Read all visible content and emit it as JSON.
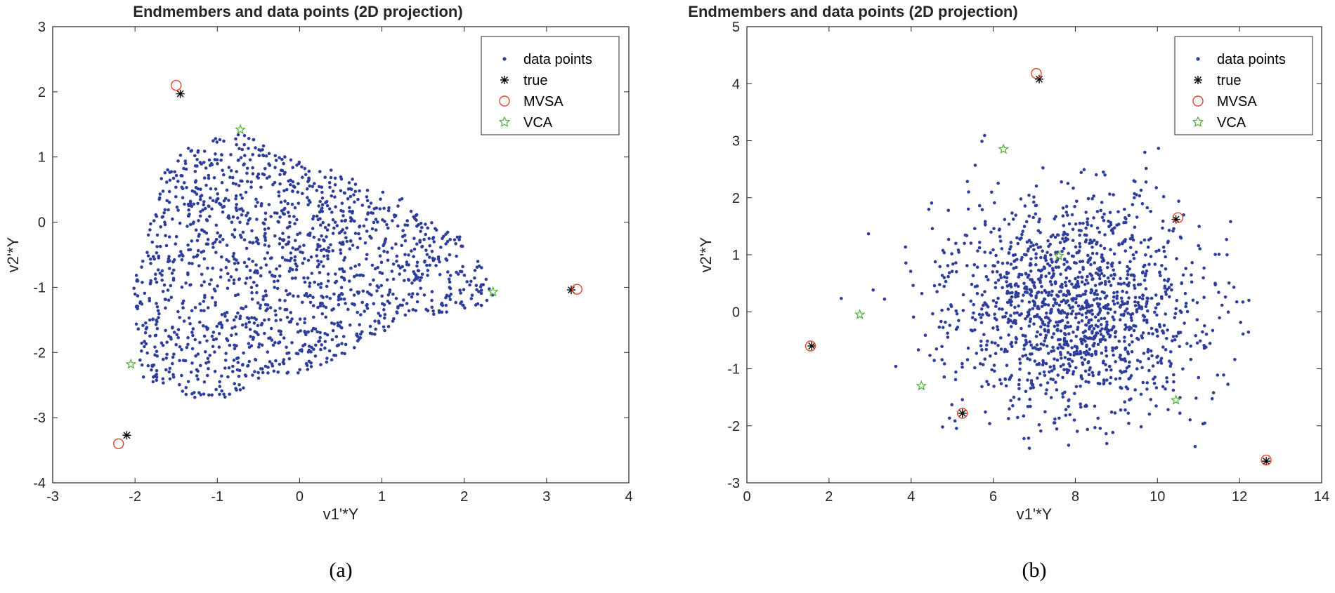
{
  "chart_data": [
    {
      "type": "scatter",
      "title": "Endmembers and data points (2D projection)",
      "xlabel": "v1'*Y",
      "ylabel": "v2'*Y",
      "xlim": [
        -3,
        4
      ],
      "ylim": [
        -4,
        3
      ],
      "xticks": [
        "-3",
        "-2",
        "-1",
        "0",
        "1",
        "2",
        "3",
        "4"
      ],
      "yticks": [
        "-4",
        "-3",
        "-2",
        "-1",
        "0",
        "1",
        "2",
        "3"
      ],
      "caption": "(a)",
      "legend_position": "top-right",
      "legend": [
        "data points",
        "true",
        "MVSA",
        "VCA"
      ],
      "data_points": {
        "count": 1500,
        "cloud_polygon": [
          [
            -1.95,
            -2.25
          ],
          [
            -2.02,
            -1.0
          ],
          [
            -1.72,
            0.55
          ],
          [
            -1.55,
            1.05
          ],
          [
            -1.0,
            1.32
          ],
          [
            -0.72,
            1.4
          ],
          [
            -0.2,
            1.05
          ],
          [
            0.4,
            0.8
          ],
          [
            1.2,
            0.4
          ],
          [
            1.9,
            -0.15
          ],
          [
            2.32,
            -0.85
          ],
          [
            2.38,
            -1.1
          ],
          [
            2.2,
            -1.3
          ],
          [
            1.2,
            -1.55
          ],
          [
            0.3,
            -2.2
          ],
          [
            -0.6,
            -2.55
          ],
          [
            -1.05,
            -2.75
          ],
          [
            -1.55,
            -2.62
          ],
          [
            -1.95,
            -2.35
          ]
        ]
      },
      "series": [
        {
          "name": "true",
          "x": [
            -1.45,
            -2.1,
            3.3
          ],
          "y": [
            1.97,
            -3.27,
            -1.04
          ]
        },
        {
          "name": "MVSA",
          "x": [
            -1.5,
            -2.2,
            3.37
          ],
          "y": [
            2.1,
            -3.4,
            -1.03
          ]
        },
        {
          "name": "VCA",
          "x": [
            -0.72,
            -2.05,
            2.35
          ],
          "y": [
            1.42,
            -2.18,
            -1.07
          ]
        }
      ]
    },
    {
      "type": "scatter",
      "title": "Endmembers and data points (2D projection)",
      "xlabel": "v1'*Y",
      "ylabel": "v2'*Y",
      "xlim": [
        0,
        14
      ],
      "ylim": [
        -3,
        5
      ],
      "xticks": [
        "0",
        "2",
        "4",
        "6",
        "8",
        "10",
        "12",
        "14"
      ],
      "yticks": [
        "-3",
        "-2",
        "-1",
        "0",
        "1",
        "2",
        "3",
        "4",
        "5"
      ],
      "caption": "(b)",
      "legend_position": "top-right",
      "legend": [
        "data points",
        "true",
        "MVSA",
        "VCA"
      ],
      "data_points": {
        "count": 1500,
        "center": [
          7.9,
          0.1
        ],
        "spread": [
          1.6,
          1.0
        ]
      },
      "series": [
        {
          "name": "true",
          "x": [
            7.12,
            1.58,
            5.25,
            10.45,
            12.65
          ],
          "y": [
            4.08,
            -0.6,
            -1.78,
            1.62,
            -2.62
          ]
        },
        {
          "name": "MVSA",
          "x": [
            7.05,
            1.55,
            5.25,
            10.5,
            12.65
          ],
          "y": [
            4.18,
            -0.6,
            -1.78,
            1.65,
            -2.6
          ]
        },
        {
          "name": "VCA",
          "x": [
            6.25,
            2.75,
            4.25,
            7.6,
            10.45
          ],
          "y": [
            2.85,
            -0.05,
            -1.3,
            0.98,
            -1.55
          ]
        }
      ]
    }
  ],
  "colors": {
    "data_points": "#2e3e9a",
    "true": "#000000",
    "MVSA": "#e8412c",
    "VCA": "#4caf32",
    "axes": "#262626"
  }
}
